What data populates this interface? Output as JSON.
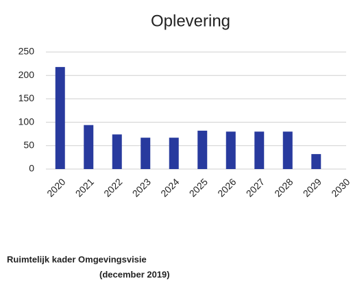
{
  "chart_data": {
    "type": "bar",
    "title": "Oplevering",
    "categories": [
      "2020",
      "2021",
      "2022",
      "2023",
      "2024",
      "2025",
      "2026",
      "2027",
      "2028",
      "2029",
      "2030"
    ],
    "values": [
      218,
      94,
      74,
      67,
      67,
      82,
      80,
      80,
      80,
      32,
      null
    ],
    "color": "#283a9e",
    "ylim": [
      0,
      250
    ],
    "yticks": [
      0,
      50,
      100,
      150,
      200,
      250
    ],
    "grid": true,
    "footnote": [
      "Ruimtelijk kader Omgevingsvisie",
      "(december 2019)"
    ]
  }
}
